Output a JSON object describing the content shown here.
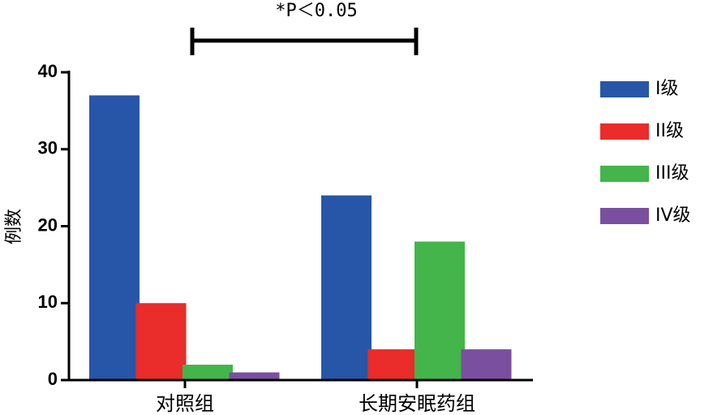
{
  "chart_data": {
    "type": "bar",
    "annotation": "*P＜0.05",
    "y_label": "例数",
    "categories": [
      "对照组",
      "长期安眠药组"
    ],
    "series": [
      {
        "name": "I级",
        "color": "#2756a8",
        "values": [
          37,
          24
        ]
      },
      {
        "name": "II级",
        "color": "#ea2c2a",
        "values": [
          10,
          4
        ]
      },
      {
        "name": "III级",
        "color": "#43b54a",
        "values": [
          2,
          18
        ]
      },
      {
        "name": "IV级",
        "color": "#7b4fa0",
        "values": [
          1,
          4
        ]
      }
    ],
    "ylim": [
      0,
      40
    ],
    "yticks": [
      0,
      10,
      20,
      30,
      40
    ],
    "legend": "right"
  }
}
